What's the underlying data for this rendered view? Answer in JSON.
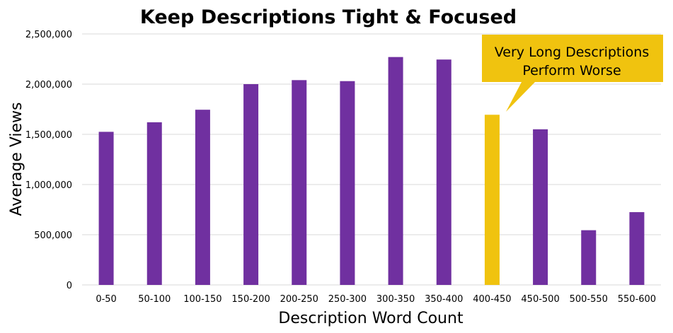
{
  "chart_data": {
    "type": "bar",
    "title": "Keep Descriptions Tight & Focused",
    "xlabel": "Description Word Count",
    "ylabel": "Average Views",
    "categories": [
      "0-50",
      "50-100",
      "100-150",
      "150-200",
      "200-250",
      "250-300",
      "300-350",
      "350-400",
      "400-450",
      "450-500",
      "500-550",
      "550-600"
    ],
    "values": [
      1525000,
      1620000,
      1745000,
      2000000,
      2040000,
      2030000,
      2270000,
      2245000,
      1695000,
      1550000,
      545000,
      725000
    ],
    "ylim": [
      0,
      2500000
    ],
    "yticks": [
      0,
      500000,
      1000000,
      1500000,
      2000000,
      2500000
    ],
    "ytick_labels": [
      "0",
      "500,000",
      "1,000,000",
      "1,500,000",
      "2,000,000",
      "2,500,000"
    ],
    "grid": true,
    "highlight_category": "400-450",
    "colors": {
      "bar": "#7030a0",
      "highlight": "#f0c30f",
      "callout": "#f0c30f"
    },
    "annotation": {
      "line1": "Very Long Descriptions",
      "line2": "Perform Worse",
      "target": "400-450"
    }
  }
}
